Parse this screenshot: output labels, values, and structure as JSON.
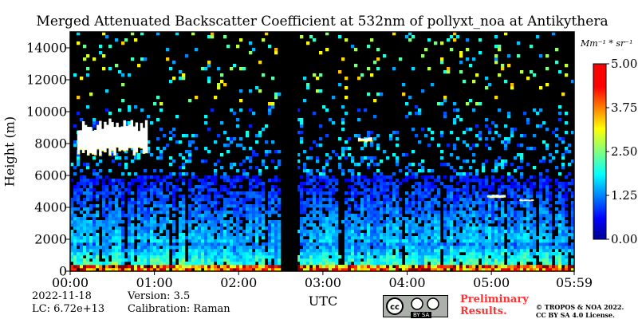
{
  "chart_data": {
    "type": "heatmap",
    "title": "Merged Attenuated Backscatter Coefficient at 532nm of pollyxt_noa at Antikythera",
    "ylabel": "Height (m)",
    "xlabel": "UTC",
    "ylim": [
      0,
      15000
    ],
    "y_ticks": [
      "0",
      "2000",
      "4000",
      "6000",
      "8000",
      "10000",
      "12000",
      "14000"
    ],
    "x_ticks": [
      "00:00",
      "01:00",
      "02:00",
      "03:00",
      "04:00",
      "05:00",
      "05:59"
    ],
    "colorbar": {
      "unit": "Mm⁻¹ * sr⁻¹",
      "range": [
        0,
        5
      ],
      "ticks": [
        "0.00",
        "1.25",
        "2.50",
        "3.75",
        "5.00"
      ],
      "colormap": "jet"
    },
    "features": [
      {
        "label": "cloud layer",
        "time_start": "00:05",
        "time_end": "00:55",
        "height_bottom": 7200,
        "height_top": 9600
      },
      {
        "label": "cloud",
        "time_start": "03:25",
        "time_end": "03:35",
        "height_bottom": 8100,
        "height_top": 8400
      },
      {
        "label": "cloud",
        "time_start": "04:57",
        "time_end": "05:10",
        "height_bottom": 4600,
        "height_top": 4800
      },
      {
        "label": "cloud",
        "time_start": "05:20",
        "time_end": "05:30",
        "height_bottom": 4400,
        "height_top": 4500
      },
      {
        "label": "no data",
        "time_start": "02:31",
        "time_end": "02:42"
      }
    ]
  },
  "meta": {
    "date": "2022-11-18",
    "version": "Version: 3.5",
    "lc": "LC: 6.72e+13",
    "calibration": "Calibration: Raman",
    "preliminary_line1": "Preliminary",
    "preliminary_line2": "Results.",
    "copyright_line1": "© TROPOS & NOA 2022.",
    "copyright_line2": "CC BY SA 4.0 License.",
    "license_badge": "BY  SA"
  }
}
